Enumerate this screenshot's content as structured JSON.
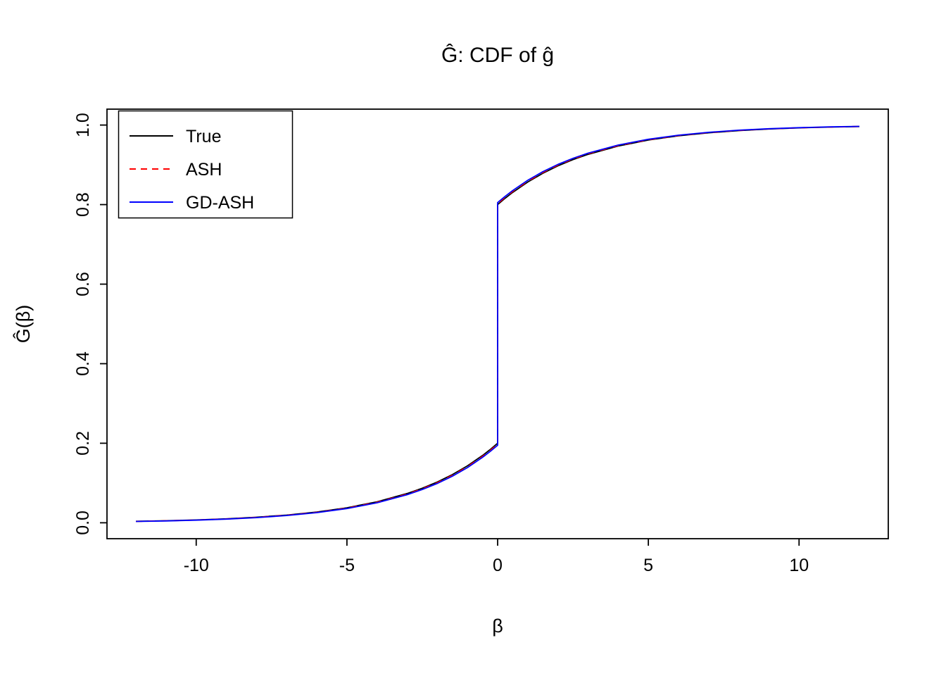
{
  "page": {
    "background": "#ffffff"
  },
  "chart_data": {
    "type": "line",
    "title": "Ĝ: CDF of ĝ",
    "xlabel": "β",
    "ylabel": "Ĝ(β)",
    "xlim": [
      -12,
      12
    ],
    "ylim": [
      0,
      1
    ],
    "grid": false,
    "legend_position": "topleft",
    "x_ticks": [
      {
        "value": -10,
        "label": "-10"
      },
      {
        "value": -5,
        "label": "-5"
      },
      {
        "value": 0,
        "label": "0"
      },
      {
        "value": 5,
        "label": "5"
      },
      {
        "value": 10,
        "label": "10"
      }
    ],
    "y_ticks": [
      {
        "value": 0.0,
        "label": "0.0"
      },
      {
        "value": 0.2,
        "label": "0.2"
      },
      {
        "value": 0.4,
        "label": "0.4"
      },
      {
        "value": 0.6,
        "label": "0.6"
      },
      {
        "value": 0.8,
        "label": "0.8"
      },
      {
        "value": 1.0,
        "label": "1.0"
      }
    ],
    "x": [
      -12,
      -11,
      -10,
      -9,
      -8,
      -7,
      -6,
      -5,
      -4,
      -3,
      -2.5,
      -2,
      -1.5,
      -1,
      -0.5,
      -0.25,
      0,
      0,
      0.25,
      0.5,
      1,
      1.5,
      2,
      2.5,
      3,
      4,
      5,
      6,
      7,
      8,
      9,
      10,
      11,
      12
    ],
    "series": [
      {
        "name": "True",
        "color": "#000000",
        "dash": "solid",
        "y": [
          0.0037,
          0.0051,
          0.0071,
          0.01,
          0.014,
          0.0194,
          0.0271,
          0.0378,
          0.0527,
          0.0736,
          0.0869,
          0.1027,
          0.1213,
          0.1433,
          0.1693,
          0.184,
          0.2,
          0.8,
          0.816,
          0.8307,
          0.8567,
          0.8787,
          0.8973,
          0.9131,
          0.9264,
          0.9473,
          0.9622,
          0.9729,
          0.9806,
          0.986,
          0.99,
          0.9929,
          0.9949,
          0.9963
        ]
      },
      {
        "name": "ASH",
        "color": "#ff0000",
        "dash": "dashed",
        "y": [
          0.0035,
          0.0049,
          0.0069,
          0.0096,
          0.0134,
          0.0188,
          0.0263,
          0.0368,
          0.0515,
          0.0721,
          0.0853,
          0.1009,
          0.1193,
          0.1411,
          0.167,
          0.1816,
          0.1975,
          0.8025,
          0.8184,
          0.833,
          0.8589,
          0.8807,
          0.8992,
          0.9148,
          0.9279,
          0.9485,
          0.9632,
          0.9737,
          0.9812,
          0.9866,
          0.9904,
          0.9931,
          0.9951,
          0.9965
        ]
      },
      {
        "name": "GD-ASH",
        "color": "#0000ff",
        "dash": "solid",
        "y": [
          0.0033,
          0.0047,
          0.0066,
          0.0092,
          0.0129,
          0.0182,
          0.0255,
          0.0358,
          0.0503,
          0.0706,
          0.0836,
          0.099,
          0.1173,
          0.1389,
          0.1646,
          0.1792,
          0.195,
          0.805,
          0.8208,
          0.8354,
          0.8611,
          0.8827,
          0.901,
          0.9164,
          0.9294,
          0.9497,
          0.9642,
          0.9745,
          0.9818,
          0.9871,
          0.9908,
          0.9934,
          0.9953,
          0.9967
        ]
      }
    ]
  }
}
